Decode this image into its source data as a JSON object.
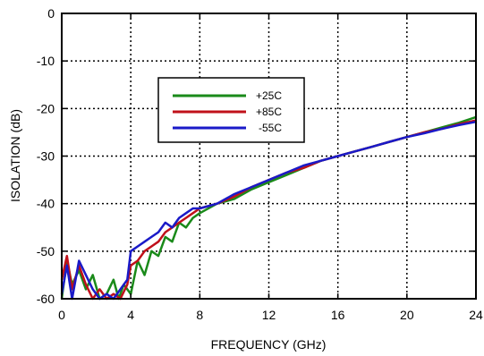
{
  "chart_data": {
    "type": "line",
    "title": "",
    "xlabel": "FREQUENCY (GHz)",
    "ylabel": "ISOLATION (dB)",
    "xlim": [
      0,
      24
    ],
    "ylim": [
      -60,
      0
    ],
    "xticks": [
      0,
      4,
      8,
      12,
      16,
      20,
      24
    ],
    "yticks": [
      0,
      -10,
      -20,
      -30,
      -40,
      -50,
      -60
    ],
    "grid": true,
    "grid_style": "dotted",
    "legend_position": "upper-left-center",
    "series": [
      {
        "name": "+25C",
        "color": "#1a8a1a",
        "x": [
          0,
          0.3,
          0.6,
          1.0,
          1.4,
          1.8,
          2.2,
          2.6,
          3.0,
          3.3,
          3.6,
          4.0,
          4.4,
          4.8,
          5.2,
          5.6,
          6.0,
          6.4,
          6.8,
          7.2,
          7.6,
          8.0,
          9.0,
          10.0,
          11.0,
          12.0,
          13.0,
          14.0,
          15.0,
          16.0,
          17.0,
          18.0,
          19.0,
          20.0,
          21.0,
          22.0,
          23.0,
          24.0
        ],
        "y": [
          -60,
          -52,
          -57,
          -54,
          -58,
          -55,
          -60,
          -59,
          -56,
          -60,
          -57,
          -59,
          -52,
          -55,
          -50,
          -51,
          -47,
          -48,
          -44,
          -45,
          -43,
          -42,
          -40,
          -39,
          -37,
          -35.5,
          -34,
          -32.5,
          -31,
          -30,
          -29,
          -28,
          -27,
          -26,
          -25,
          -24,
          -23,
          -21.8
        ]
      },
      {
        "name": "+85C",
        "color": "#c0101a",
        "x": [
          0,
          0.3,
          0.6,
          1.0,
          1.4,
          1.8,
          2.2,
          2.6,
          3.0,
          3.4,
          3.8,
          4.0,
          4.4,
          4.8,
          5.2,
          5.6,
          6.0,
          6.4,
          6.8,
          7.2,
          7.6,
          8.0,
          9.0,
          10.0,
          11.0,
          12.0,
          13.0,
          14.0,
          15.0,
          16.0,
          17.0,
          18.0,
          19.0,
          20.0,
          21.0,
          22.0,
          23.0,
          24.0
        ],
        "y": [
          -56,
          -51,
          -58,
          -53,
          -57,
          -60,
          -58,
          -60,
          -59,
          -60,
          -57,
          -53,
          -52,
          -50,
          -49,
          -48,
          -46,
          -45,
          -44,
          -43,
          -42,
          -41,
          -40,
          -38.5,
          -36.5,
          -35,
          -33.5,
          -32.5,
          -31,
          -30,
          -29,
          -28,
          -27,
          -26,
          -25,
          -24.3,
          -23.3,
          -22.5
        ]
      },
      {
        "name": "-55C",
        "color": "#1a1ac8",
        "x": [
          0,
          0.3,
          0.6,
          1.0,
          1.4,
          1.8,
          2.2,
          2.6,
          3.0,
          3.4,
          3.8,
          4.0,
          4.4,
          4.8,
          5.2,
          5.6,
          6.0,
          6.4,
          6.8,
          7.2,
          7.6,
          8.0,
          9.0,
          10.0,
          11.0,
          12.0,
          13.0,
          14.0,
          15.0,
          16.0,
          17.0,
          18.0,
          19.0,
          20.0,
          21.0,
          22.0,
          23.0,
          24.0
        ],
        "y": [
          -59,
          -53,
          -60,
          -52,
          -55,
          -58,
          -60,
          -59,
          -60,
          -58,
          -56,
          -50,
          -49,
          -48,
          -47,
          -46,
          -44,
          -45,
          -43,
          -42,
          -41,
          -41,
          -40,
          -38,
          -36.5,
          -35,
          -33.5,
          -32,
          -31,
          -30,
          -29,
          -28,
          -27,
          -26,
          -25.2,
          -24.3,
          -23.5,
          -22.8
        ]
      }
    ]
  }
}
